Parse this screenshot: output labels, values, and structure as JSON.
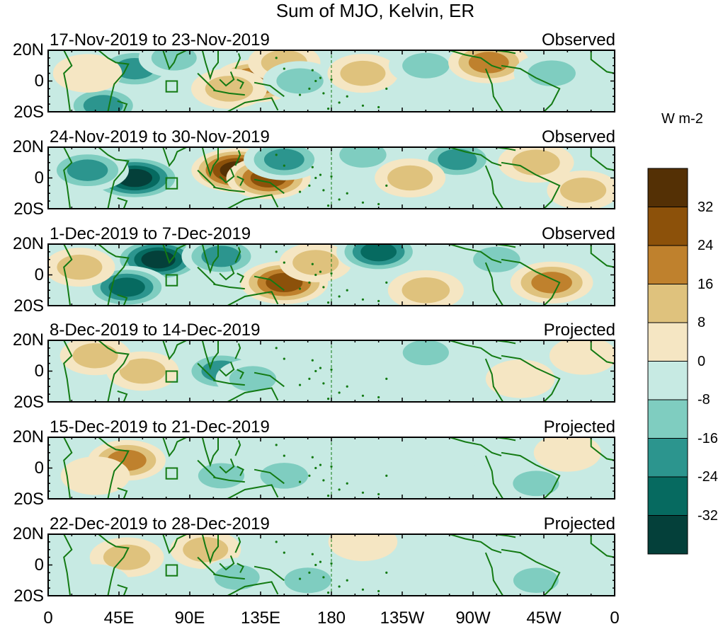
{
  "chart_data": {
    "type": "heatmap",
    "title": "Sum of MJO, Kelvin, ER",
    "units": "W m-2",
    "x_ticks": [
      "0",
      "45E",
      "90E",
      "135E",
      "180",
      "135W",
      "90W",
      "45W",
      "0"
    ],
    "y_ticks": [
      "20N",
      "0",
      "20S"
    ],
    "xlim": [
      0,
      360
    ],
    "ylim": [
      -20,
      20
    ],
    "colorbar": {
      "levels": [
        -40,
        -32,
        -24,
        -16,
        -8,
        0,
        8,
        16,
        24,
        32,
        40
      ],
      "tick_labels": [
        "32",
        "24",
        "16",
        "8",
        "0",
        "-8",
        "-16",
        "-24",
        "-32"
      ],
      "colors": [
        "#04403a",
        "#066a60",
        "#2c958e",
        "#7fcdc0",
        "#c7eae3",
        "#f5e6c3",
        "#dfc27d",
        "#bf812d",
        "#8c510a",
        "#543005"
      ]
    },
    "panels": [
      {
        "label": "17-Nov-2019 to 23-Nov-2019",
        "type_label": "Observed",
        "anomalies": [
          {
            "lon": 55,
            "lat": 8,
            "value": -22
          },
          {
            "lon": 35,
            "lat": -16,
            "value": -20
          },
          {
            "lon": 80,
            "lat": 15,
            "value": -10
          },
          {
            "lon": 132,
            "lat": 0,
            "value": 28
          },
          {
            "lon": 115,
            "lat": -5,
            "value": 16
          },
          {
            "lon": 150,
            "lat": 12,
            "value": 12
          },
          {
            "lon": 160,
            "lat": 0,
            "value": -14
          },
          {
            "lon": 200,
            "lat": 5,
            "value": 10
          },
          {
            "lon": 240,
            "lat": 10,
            "value": -14
          },
          {
            "lon": 280,
            "lat": 12,
            "value": 22
          },
          {
            "lon": 320,
            "lat": 5,
            "value": -16
          },
          {
            "lon": 25,
            "lat": 5,
            "value": 8
          }
        ]
      },
      {
        "label": "24-Nov-2019 to 30-Nov-2019",
        "type_label": "Observed",
        "anomalies": [
          {
            "lon": 55,
            "lat": 0,
            "value": -40
          },
          {
            "lon": 25,
            "lat": 5,
            "value": -24
          },
          {
            "lon": 120,
            "lat": 5,
            "value": 34
          },
          {
            "lon": 140,
            "lat": 0,
            "value": 26
          },
          {
            "lon": 150,
            "lat": 12,
            "value": -22
          },
          {
            "lon": 200,
            "lat": 15,
            "value": -14
          },
          {
            "lon": 260,
            "lat": 12,
            "value": -18
          },
          {
            "lon": 230,
            "lat": 0,
            "value": 10
          },
          {
            "lon": 310,
            "lat": 10,
            "value": 16
          },
          {
            "lon": 340,
            "lat": -8,
            "value": 12
          }
        ]
      },
      {
        "label": "1-Dec-2019 to 7-Dec-2019",
        "type_label": "Observed",
        "anomalies": [
          {
            "lon": 70,
            "lat": 10,
            "value": -34
          },
          {
            "lon": 50,
            "lat": -8,
            "value": -28
          },
          {
            "lon": 110,
            "lat": 12,
            "value": -20
          },
          {
            "lon": 150,
            "lat": -5,
            "value": 30
          },
          {
            "lon": 170,
            "lat": 8,
            "value": 12
          },
          {
            "lon": 210,
            "lat": 15,
            "value": -26
          },
          {
            "lon": 240,
            "lat": -10,
            "value": 16
          },
          {
            "lon": 285,
            "lat": 10,
            "value": -14
          },
          {
            "lon": 320,
            "lat": -5,
            "value": 24
          },
          {
            "lon": 20,
            "lat": 5,
            "value": 10
          }
        ]
      },
      {
        "label": "8-Dec-2019 to 14-Dec-2019",
        "type_label": "Projected",
        "anomalies": [
          {
            "lon": 110,
            "lat": 0,
            "value": -20
          },
          {
            "lon": 130,
            "lat": -5,
            "value": -14
          },
          {
            "lon": 60,
            "lat": 0,
            "value": 12
          },
          {
            "lon": 30,
            "lat": 10,
            "value": 10
          },
          {
            "lon": 240,
            "lat": 12,
            "value": -12
          },
          {
            "lon": 200,
            "lat": 0,
            "value": -6
          },
          {
            "lon": 300,
            "lat": -5,
            "value": 8
          },
          {
            "lon": 340,
            "lat": 10,
            "value": 6
          }
        ]
      },
      {
        "label": "15-Dec-2019 to 21-Dec-2019",
        "type_label": "Projected",
        "anomalies": [
          {
            "lon": 50,
            "lat": 5,
            "value": 18
          },
          {
            "lon": 150,
            "lat": -5,
            "value": -16
          },
          {
            "lon": 110,
            "lat": -5,
            "value": -12
          },
          {
            "lon": 30,
            "lat": -5,
            "value": 8
          },
          {
            "lon": 250,
            "lat": 0,
            "value": -6
          },
          {
            "lon": 310,
            "lat": -10,
            "value": -12
          },
          {
            "lon": 330,
            "lat": 10,
            "value": 6
          }
        ]
      },
      {
        "label": "22-Dec-2019 to 28-Dec-2019",
        "type_label": "Projected",
        "anomalies": [
          {
            "lon": 50,
            "lat": 5,
            "value": 14
          },
          {
            "lon": 100,
            "lat": 10,
            "value": 10
          },
          {
            "lon": 165,
            "lat": -10,
            "value": -14
          },
          {
            "lon": 120,
            "lat": -8,
            "value": -10
          },
          {
            "lon": 200,
            "lat": 15,
            "value": 8
          },
          {
            "lon": 310,
            "lat": -10,
            "value": -10
          },
          {
            "lon": 30,
            "lat": -12,
            "value": -8
          }
        ]
      }
    ]
  }
}
